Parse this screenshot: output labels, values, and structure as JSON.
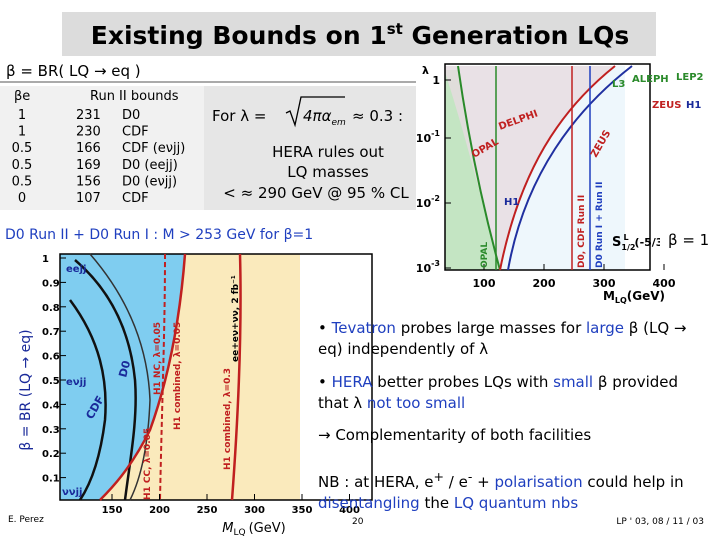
{
  "header": {
    "title_main": "Existing Bounds on 1",
    "title_sup": "st",
    "title_end": " Generation LQs",
    "definition": "β = BR( LQ → eq )"
  },
  "bounds_table": {
    "headers": [
      "βe",
      "Run II bounds"
    ],
    "rows": [
      [
        "1",
        "231",
        "D0"
      ],
      [
        "1",
        "230",
        "CDF"
      ],
      [
        "0.5",
        "166",
        "CDF (eνjj)"
      ],
      [
        "0.5",
        "169",
        "D0 (eejj)"
      ],
      [
        "0.5",
        "156",
        "D0 (eνjj)"
      ],
      [
        "0",
        "107",
        "CDF"
      ]
    ]
  },
  "hera_box": {
    "formula_lead": "For  λ =",
    "formula_root": "4πα",
    "formula_sub": "em",
    "formula_tail": "≈ 0.3   :",
    "lines": [
      "HERA rules out",
      "LQ masses",
      "< ≈ 290 GeV @ 95 % CL"
    ]
  },
  "d0_summary": "D0 Run II + D0 Run I : M > 253 GeV for β=1",
  "top_plot": {
    "y_axis_label": "λ",
    "y_ticks": [
      {
        "base": "1",
        "exp": ""
      },
      {
        "base": "10",
        "exp": "-1"
      },
      {
        "base": "10",
        "exp": "-2"
      },
      {
        "base": "10",
        "exp": "-3"
      }
    ],
    "x_ticks": [
      "100",
      "200",
      "300",
      "400"
    ],
    "x_axis_label": "M",
    "x_axis_sub": "LQ",
    "x_axis_unit": "(GeV)",
    "labels": [
      "L3",
      "ALEPH",
      "LEP2",
      "ZEUS",
      "H1",
      "DELPHI",
      "OPAL",
      "ZEUS",
      "H1",
      "OPAL",
      "D0, CDF Run II",
      "D0 Run I + Run II"
    ],
    "state_symbol": "S",
    "state_sub": "1/2",
    "state_sup": "L",
    "state_charge": "(-5/3)",
    "beta_label": "β = 1"
  },
  "bottom_plot": {
    "y_axis_label": "β = BR (LQ → eq)",
    "y_ticks": [
      "1",
      "0.9",
      "0.8",
      "0.7",
      "0.6",
      "0.5",
      "0.4",
      "0.3",
      "0.2",
      "0.1"
    ],
    "x_ticks": [
      "150",
      "200",
      "250",
      "300",
      "350",
      "400"
    ],
    "x_axis_label": "M",
    "x_axis_sub": "LQ",
    "x_axis_unit": "(GeV)",
    "labels": [
      "eejj",
      "eνjj",
      "ννjj",
      "D0",
      "CDF",
      "H1 NC, λ=0.05",
      "H1 combined, λ=0.05",
      "H1 combined, λ=0.3",
      "ee+eν+νν, 2 fb⁻¹",
      "H1 CC, λ=0.05"
    ]
  },
  "bullets": [
    [
      "• ",
      "Tevatron",
      " probes large masses for ",
      "large",
      " β (LQ → eq) independently of λ"
    ],
    [
      "• ",
      "HERA",
      " better probes LQs with ",
      "small",
      " β provided that λ ",
      "not too small"
    ],
    [
      "→ Complementarity of both facilities"
    ]
  ],
  "note": [
    "NB : at HERA, e",
    "+",
    " / e",
    "-",
    " + ",
    "polarisation",
    " could help in ",
    "disentangling",
    " the ",
    "LQ quantum nbs"
  ],
  "footer": {
    "author": "E. Perez",
    "page": "20",
    "conference": "LP ' 03, 08 / 11 / 03"
  }
}
